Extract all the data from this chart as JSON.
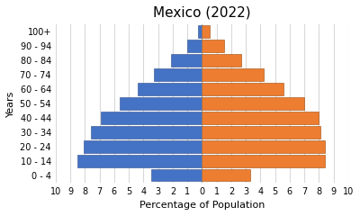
{
  "title": "Mexico (2022)",
  "xlabel": "Percentage of Population",
  "ylabel": "Years",
  "age_groups": [
    "0 - 4",
    "10 - 14",
    "20 - 24",
    "30 - 34",
    "40 - 44",
    "50 - 54",
    "60 - 64",
    "70 - 74",
    "80 - 84",
    "90 - 94",
    "100+"
  ],
  "male_values": [
    3.5,
    8.5,
    8.1,
    7.6,
    6.9,
    5.6,
    4.4,
    3.3,
    2.1,
    1.0,
    0.3
  ],
  "female_values": [
    3.3,
    8.4,
    8.4,
    8.1,
    8.0,
    7.0,
    5.6,
    4.2,
    2.7,
    1.5,
    0.5
  ],
  "male_color": "#4472C4",
  "female_color": "#ED7D31",
  "male_edge": "#2E4D8A",
  "female_edge": "#9C4A0A",
  "xlim": 10,
  "background": "#ffffff",
  "grid_color": "#d9d9d9",
  "title_fontsize": 11,
  "axis_fontsize": 7,
  "label_fontsize": 8
}
